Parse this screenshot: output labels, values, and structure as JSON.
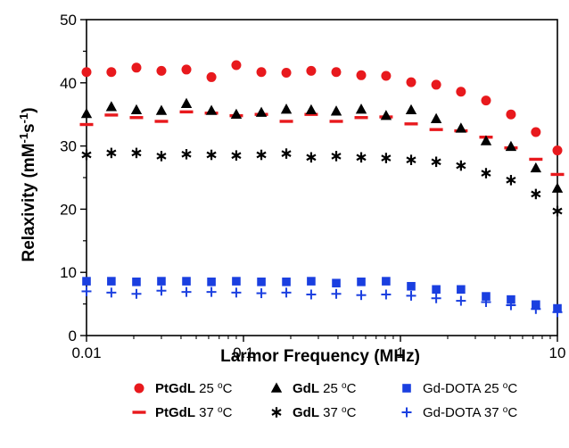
{
  "chart_data": {
    "type": "scatter",
    "title": "",
    "xlabel": "Larmor Frequency (MHz)",
    "ylabel_main": "Relaxivity (mM",
    "ylabel_sup1": "-1",
    "ylabel_mid": "s",
    "ylabel_sup2": "-1",
    "ylabel_end": ")",
    "xscale": "log",
    "xlim": [
      0.01,
      10
    ],
    "ylim": [
      0,
      50
    ],
    "xticks": [
      {
        "value": 0.01,
        "label": "0.01"
      },
      {
        "value": 0.1,
        "label": "0.1"
      },
      {
        "value": 1,
        "label": "1"
      },
      {
        "value": 10,
        "label": "10"
      }
    ],
    "yticks": [
      {
        "value": 0,
        "label": "0"
      },
      {
        "value": 10,
        "label": "10"
      },
      {
        "value": 20,
        "label": "20"
      },
      {
        "value": 30,
        "label": "30"
      },
      {
        "value": 40,
        "label": "40"
      },
      {
        "value": 50,
        "label": "50"
      }
    ],
    "grid": false,
    "legend_position": "bottom",
    "x": [
      0.01,
      0.0144,
      0.0208,
      0.03,
      0.0433,
      0.0625,
      0.09,
      0.13,
      0.1875,
      0.27,
      0.39,
      0.5625,
      0.81,
      1.17,
      1.69,
      2.43,
      3.51,
      5.06,
      7.29,
      10
    ],
    "series": [
      {
        "name": "PtGdL",
        "temp": "25",
        "marker": "circle",
        "color": "#e8191d",
        "values": [
          41.7,
          41.7,
          42.4,
          41.9,
          42.1,
          40.9,
          42.8,
          41.7,
          41.6,
          41.9,
          41.7,
          41.2,
          41.1,
          40.1,
          39.7,
          38.6,
          37.2,
          35.0,
          32.2,
          29.3
        ]
      },
      {
        "name": "PtGdL",
        "temp": "37",
        "marker": "dash",
        "color": "#e8191d",
        "values": [
          33.4,
          34.9,
          34.5,
          33.9,
          35.4,
          35.2,
          34.8,
          35.0,
          33.9,
          35.0,
          33.9,
          34.5,
          34.6,
          33.5,
          32.6,
          32.4,
          31.4,
          29.7,
          27.9,
          25.5
        ]
      },
      {
        "name": "GdL",
        "temp": "25",
        "marker": "triangle",
        "color": "#000000",
        "values": [
          35.1,
          36.2,
          35.7,
          35.6,
          36.7,
          35.6,
          35.0,
          35.3,
          35.8,
          35.7,
          35.5,
          35.8,
          34.8,
          35.7,
          34.3,
          32.8,
          30.8,
          29.9,
          26.5,
          23.3
        ]
      },
      {
        "name": "GdL",
        "temp": "37",
        "marker": "asterisk",
        "color": "#000000",
        "values": [
          28.6,
          28.9,
          28.9,
          28.4,
          28.7,
          28.6,
          28.5,
          28.6,
          28.8,
          28.2,
          28.4,
          28.2,
          28.1,
          27.8,
          27.5,
          26.9,
          25.7,
          24.6,
          22.4,
          19.7
        ]
      },
      {
        "name": "Gd-DOTA",
        "temp": "25",
        "marker": "square",
        "color": "#1a3fe0",
        "values": [
          8.6,
          8.6,
          8.5,
          8.6,
          8.6,
          8.5,
          8.6,
          8.5,
          8.5,
          8.6,
          8.3,
          8.5,
          8.6,
          7.8,
          7.3,
          7.3,
          6.2,
          5.7,
          4.9,
          4.3
        ]
      },
      {
        "name": "Gd-DOTA",
        "temp": "37",
        "marker": "plus",
        "color": "#1a3fe0",
        "values": [
          7.0,
          6.8,
          6.6,
          7.1,
          6.9,
          6.9,
          6.8,
          6.7,
          6.8,
          6.5,
          6.6,
          6.4,
          6.5,
          6.3,
          5.9,
          5.5,
          5.3,
          4.8,
          4.2,
          3.7
        ]
      }
    ],
    "legend": [
      {
        "name": "PtGdL",
        "temp_text": " 25 ",
        "unit_sup": "o",
        "unit": "C",
        "marker": "circle",
        "color": "#e8191d",
        "bold": true
      },
      {
        "name": "GdL",
        "temp_text": " 25 ",
        "unit_sup": "o",
        "unit": "C",
        "marker": "triangle",
        "color": "#000000",
        "bold": true
      },
      {
        "name": "Gd-DOTA",
        "temp_text": " 25 ",
        "unit_sup": "o",
        "unit": "C",
        "marker": "square",
        "color": "#1a3fe0",
        "bold": false
      },
      {
        "name": "PtGdL",
        "temp_text": " 37 ",
        "unit_sup": "o",
        "unit": "C",
        "marker": "dash",
        "color": "#e8191d",
        "bold": true
      },
      {
        "name": "GdL",
        "temp_text": " 37 ",
        "unit_sup": "o",
        "unit": "C",
        "marker": "asterisk",
        "color": "#000000",
        "bold": true
      },
      {
        "name": "Gd-DOTA",
        "temp_text": " 37 ",
        "unit_sup": "o",
        "unit": "C",
        "marker": "plus",
        "color": "#1a3fe0",
        "bold": false
      }
    ]
  }
}
